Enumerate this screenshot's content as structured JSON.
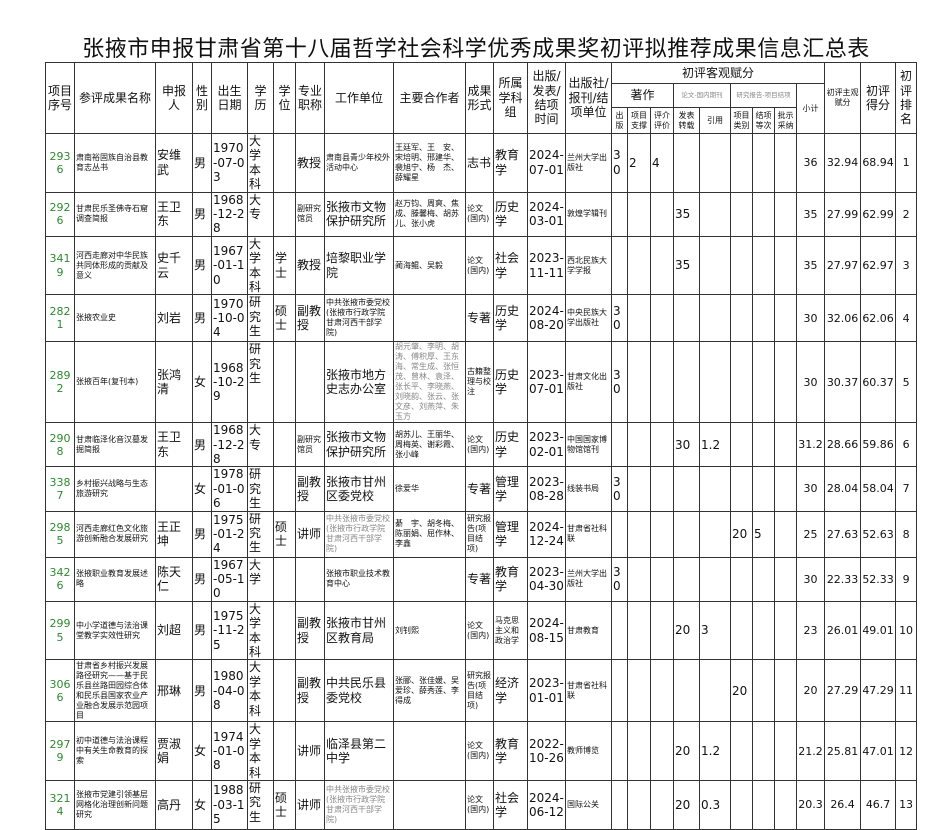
{
  "title": "张掖市申报甘肃省第十八届哲学社会科学优秀成果奖初评拟推荐成果信息汇总表",
  "header": {
    "id": "项目序号",
    "name": "参评成果名称",
    "applicant": "申报人",
    "gender": "性别",
    "dob": "出生日期",
    "edu": "学历",
    "degree": "学位",
    "prof": "专业职称",
    "unit": "工作单位",
    "coauthors": "主要合作者",
    "form": "成果形式",
    "discipline": "所属学科组",
    "date": "出版/发表/结项时间",
    "publisher": "出版社/报刊/结项单位",
    "objective": "初评客观赋分",
    "book": "著作",
    "paper": "论文-国内期刊",
    "report": "研究报告-项目结项",
    "subtotal": "小计",
    "subjective": "初评主观赋分",
    "score": "初评得分",
    "rank": "初评排名",
    "sub": [
      "出版",
      "项目支撑",
      "评介评价",
      "发表转载",
      "引用",
      "项目类别",
      "结项等次",
      "批示采纳"
    ]
  },
  "colors": {
    "id_text": "#2e8b2e",
    "border": "#333333",
    "muted_text": "#888888"
  },
  "rows": [
    {
      "cells": [
        "2936",
        "肃南裕固族自治县教育志丛书",
        "安维武",
        "男",
        "1970-07-03",
        "大学本科",
        "",
        "教授",
        "肃南县青少年校外活动中心",
        "王廷军、王　安、宋培明、邢建华、裴旭宁、杨　杰、薛耀星",
        "志书",
        "教育学",
        "2024-07-01",
        "兰州大学出版社",
        "30",
        "2",
        "4",
        "",
        "",
        "",
        "",
        "",
        "36",
        "32.94",
        "68.94",
        "1"
      ]
    },
    {
      "cells": [
        "2926",
        "甘肃民乐圣佛寺石窟调查简报",
        "王卫东",
        "男",
        "1968-12-28",
        "大专",
        "",
        "副研究馆员",
        "张掖市文物保护研究所",
        "赵万钧、周爽、焦成、滕馨梅、胡苏儿、张小虎",
        "论文(国内)",
        "历史学",
        "2024-03-01",
        "敦煌学辑刊",
        "",
        "",
        "",
        "35",
        "",
        "",
        "",
        "",
        "35",
        "27.99",
        "62.99",
        "2"
      ]
    },
    {
      "cells": [
        "3419",
        "河西走廊对中华民族共同体形成的贡献及意义",
        "史千云",
        "男",
        "1967-01-10",
        "大学本科",
        "学士",
        "教授",
        "培黎职业学院",
        "蔺海鲲、吴毅",
        "论文(国内)",
        "社会学",
        "2023-11-11",
        "西北民族大学学报",
        "",
        "",
        "",
        "35",
        "",
        "",
        "",
        "",
        "35",
        "27.97",
        "62.97",
        "3"
      ]
    },
    {
      "cells": [
        "2821",
        "张掖农业史",
        "刘岩",
        "男",
        "1970-10-04",
        "研究生",
        "硕士",
        "副教授",
        "中共张掖市委党校(张掖市行政学院 甘肃河西干部学院)",
        "",
        "专著",
        "历史学",
        "2024-08-20",
        "中央民族大学出版社",
        "30",
        "",
        "",
        "",
        "",
        "",
        "",
        "",
        "30",
        "32.06",
        "62.06",
        "4"
      ]
    },
    {
      "cells": [
        "2892",
        "张掖百年(复刊本)",
        "张鸿清",
        "女",
        "1968-10-29",
        "研究生",
        "",
        "",
        "张掖市地方史志办公室",
        "胡元肇、李明、胡涛、傅积厚、王东海、常生成、张恒茂、曾林、袁泽、张长平、李晓燕、刘晓韵、张云、张文彦、刘燕萍、朱玉方",
        "古籍整理与校注",
        "历史学",
        "2023-07-01",
        "甘肃文化出版社",
        "30",
        "",
        "",
        "",
        "",
        "",
        "",
        "",
        "30",
        "30.37",
        "60.37",
        "5"
      ]
    },
    {
      "cells": [
        "2908",
        "甘肃临泽化音汉墓发掘简报",
        "王卫东",
        "男",
        "1968-12-28",
        "大专",
        "",
        "副研究馆员",
        "张掖市文物保护研究所",
        "胡苏儿、王丽华、周梅英、谢彩霞、张小峰",
        "论文(国内)",
        "历史学",
        "2023-02-01",
        "中国国家博物馆馆刊",
        "",
        "",
        "",
        "30",
        "1.2",
        "",
        "",
        "",
        "31.2",
        "28.66",
        "59.86",
        "6"
      ]
    },
    {
      "cells": [
        "3387",
        "乡村振兴战略与生态旅游研究",
        "",
        "女",
        "1978-01-06",
        "研究生",
        "",
        "副教授",
        "张掖市甘州区委党校",
        "徐爱华",
        "专著",
        "管理学",
        "2023-08-28",
        "线装书局",
        "30",
        "",
        "",
        "",
        "",
        "",
        "",
        "",
        "30",
        "28.04",
        "58.04",
        "7"
      ]
    },
    {
      "cells": [
        "2985",
        "河西走廊红色文化旅游创新融合发展研究",
        "王正坤",
        "男",
        "1975-01-24",
        "研究生",
        "硕士",
        "讲师",
        "中共张掖市委党校(张掖市行政学院 甘肃河西干部学院)",
        "綦　宇、胡冬梅、陈丽娟、屈作林、李鑫",
        "研究报告(项目结项)",
        "管理学",
        "2024-12-24",
        "甘肃省社科联",
        "",
        "",
        "",
        "",
        "",
        "20",
        "5",
        "",
        "25",
        "27.63",
        "52.63",
        "8"
      ]
    },
    {
      "cells": [
        "3426",
        "张掖职业教育发展述略",
        "陈天仁",
        "男",
        "1967-05-10",
        "大学",
        "",
        "",
        "张掖市职业技术教育中心",
        "",
        "专著",
        "教育学",
        "2023-04-30",
        "兰州大学出版社",
        "30",
        "",
        "",
        "",
        "",
        "",
        "",
        "",
        "30",
        "22.33",
        "52.33",
        "9"
      ]
    },
    {
      "cells": [
        "2995",
        "中小学道德与法治课堂教学实效性研究",
        "刘超",
        "男",
        "1975-11-25",
        "大学本科",
        "",
        "副教授",
        "张掖市甘州区教育局",
        "刘钊熙",
        "论文(国内)",
        "马克思主义和政治学",
        "2024-08-15",
        "甘肃教育",
        "",
        "",
        "",
        "20",
        "3",
        "",
        "",
        "",
        "23",
        "26.01",
        "49.01",
        "10"
      ]
    },
    {
      "cells": [
        "3066",
        "甘肃省乡村振兴发展路径研究——基于民乐县丝路田园综合体和民乐县国家农业产业融合发展示范园项目",
        "邢琳",
        "男",
        "1980-04-08",
        "大学本科",
        "",
        "副教授",
        "中共民乐县委党校",
        "张郦、张佳媛、吴爱珍、薛秀莲、李得成",
        "研究报告(项目结项)",
        "经济学",
        "2023-01-01",
        "甘肃省社科联",
        "",
        "",
        "",
        "",
        "",
        "20",
        "",
        "",
        "20",
        "27.29",
        "47.29",
        "11"
      ]
    },
    {
      "cells": [
        "2979",
        "初中道德与法治课程中有关生命教育的探索",
        "贾淑娟",
        "女",
        "1974-01-08",
        "大学本科",
        "",
        "讲师",
        "临泽县第二中学",
        "",
        "论文(国内)",
        "教育学",
        "2022-10-26",
        "教师博览",
        "",
        "",
        "",
        "20",
        "1.2",
        "",
        "",
        "",
        "21.2",
        "25.81",
        "47.01",
        "12"
      ]
    },
    {
      "cells": [
        "3214",
        "张掖市党建引领基层网格化治理创新问题研究",
        "高丹",
        "女",
        "1988-03-15",
        "研究生",
        "硕士",
        "讲师",
        "中共张掖市委党校(张掖市行政学院 甘肃河西干部学院)",
        "",
        "论文(国内)",
        "社会学",
        "2024-06-12",
        "国际公关",
        "",
        "",
        "",
        "20",
        "0.3",
        "",
        "",
        "",
        "20.3",
        "26.4",
        "46.7",
        "13"
      ]
    }
  ]
}
